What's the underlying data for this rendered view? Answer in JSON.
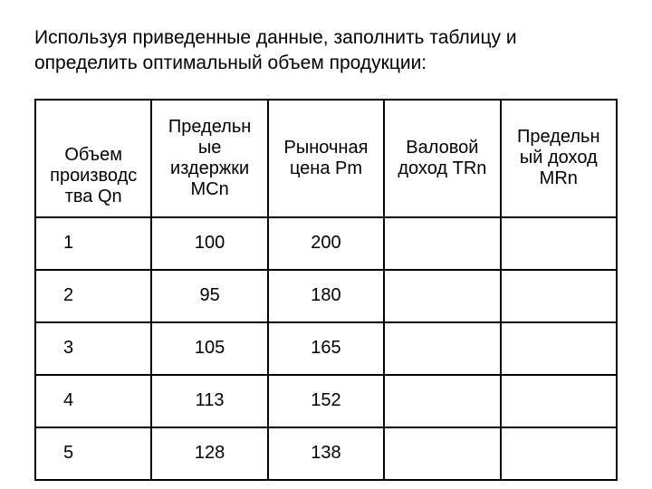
{
  "title": "Используя приведенные данные, заполнить таблицу и определить оптимальный объем продукции:",
  "table": {
    "columns": [
      "Объем производс тва Qn",
      "Предельн ые издержки MCn",
      "Рыночная цена Pm",
      "Валовой доход TRn",
      "Предельн ый доход MRn"
    ],
    "rows": [
      {
        "qn": "1",
        "mcn": "100",
        "pm": "200",
        "trn": "",
        "mrn": ""
      },
      {
        "qn": "2",
        "mcn": "95",
        "pm": "180",
        "trn": "",
        "mrn": ""
      },
      {
        "qn": "3",
        "mcn": "105",
        "pm": "165",
        "trn": "",
        "mrn": ""
      },
      {
        "qn": "4",
        "mcn": "113",
        "pm": "152",
        "trn": "",
        "mrn": ""
      },
      {
        "qn": "5",
        "mcn": "128",
        "pm": "138",
        "trn": "",
        "mrn": ""
      }
    ],
    "col_widths_pct": [
      20,
      20,
      20,
      20,
      20
    ],
    "border_color": "#000000",
    "background_color": "#ffffff",
    "font_size": 20
  }
}
